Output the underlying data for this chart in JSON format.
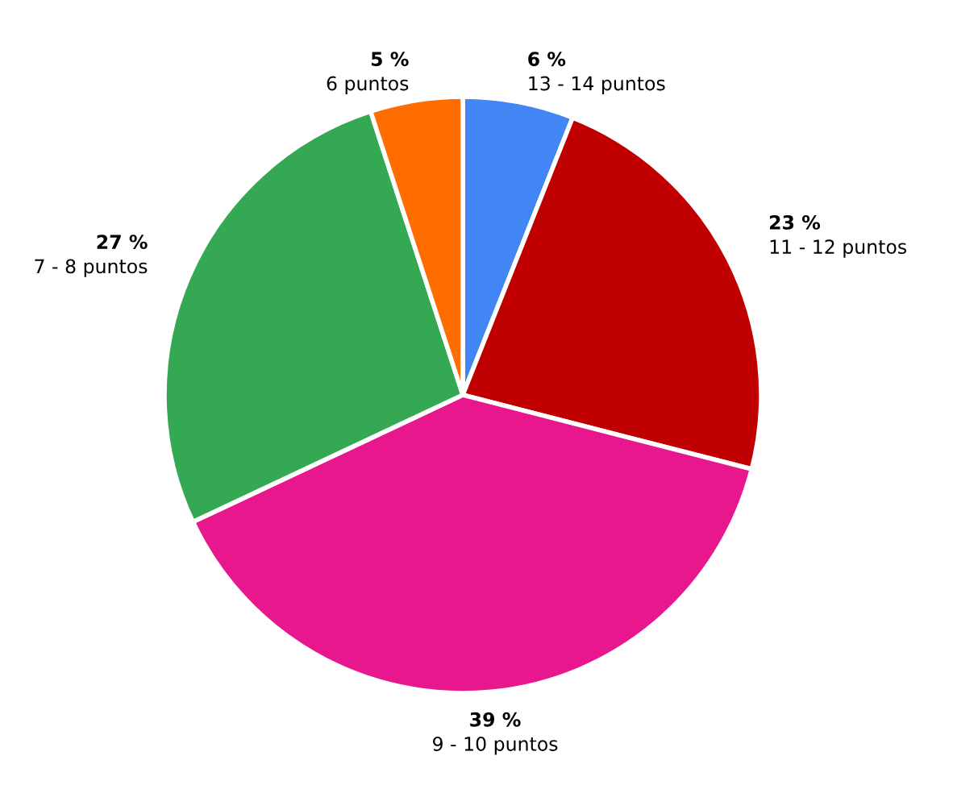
{
  "chart_data": {
    "type": "pie",
    "categories": [
      "13 - 14 puntos",
      "11 - 12 puntos",
      "9 - 10 puntos",
      "7 - 8 puntos",
      "6 puntos"
    ],
    "values": [
      6,
      23,
      39,
      27,
      5
    ],
    "value_labels": [
      "6 %",
      "23 %",
      "39 %",
      "27 %",
      "5 %"
    ],
    "colors": [
      "#4285f4",
      "#c00000",
      "#e8178e",
      "#34a853",
      "#ff6d00"
    ],
    "legend": false
  }
}
